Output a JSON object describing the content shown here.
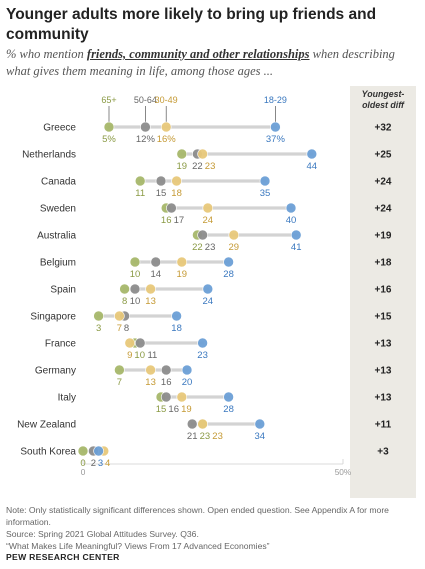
{
  "title": "Younger adults more likely to bring up friends and community",
  "subtitle": {
    "prefix": "% who mention ",
    "emphasis": "friends, community and other relationships",
    "suffix": " when describing what gives them meaning in life, among those ages ..."
  },
  "chart_data": {
    "type": "dot-plot",
    "xlim": [
      0,
      50
    ],
    "axis_tick_labels": [
      "0",
      "50%"
    ],
    "diff_header": "Youngest-oldest diff",
    "series": [
      {
        "name": "65+",
        "color": "#a7b76a"
      },
      {
        "name": "50-64",
        "color": "#8c8c8c"
      },
      {
        "name": "30-49",
        "color": "#e8c87a"
      },
      {
        "name": "18-29",
        "color": "#6b9fd6"
      }
    ],
    "rows": [
      {
        "country": "Greece",
        "values": [
          5,
          12,
          16,
          37
        ],
        "labels": [
          "5%",
          "12%",
          "16%",
          "37%"
        ],
        "diff": "+32"
      },
      {
        "country": "Netherlands",
        "values": [
          19,
          22,
          23,
          44
        ],
        "labels": [
          "19",
          "22",
          "23",
          "44"
        ],
        "diff": "+25"
      },
      {
        "country": "Canada",
        "values": [
          11,
          15,
          18,
          35
        ],
        "labels": [
          "11",
          "15",
          "18",
          "35"
        ],
        "diff": "+24"
      },
      {
        "country": "Sweden",
        "values": [
          16,
          17,
          24,
          40
        ],
        "labels": [
          "16",
          "17",
          "24",
          "40"
        ],
        "diff": "+24"
      },
      {
        "country": "Australia",
        "values": [
          22,
          23,
          29,
          41
        ],
        "labels": [
          "22",
          "23",
          "29",
          "41"
        ],
        "diff": "+19"
      },
      {
        "country": "Belgium",
        "values": [
          10,
          14,
          19,
          28
        ],
        "labels": [
          "10",
          "14",
          "19",
          "28"
        ],
        "diff": "+18"
      },
      {
        "country": "Spain",
        "values": [
          8,
          10,
          13,
          24
        ],
        "labels": [
          "8",
          "10",
          "13",
          "24"
        ],
        "diff": "+16"
      },
      {
        "country": "Singapore",
        "values": [
          3,
          8,
          7,
          18
        ],
        "labels": [
          "3",
          "8",
          "7",
          "18"
        ],
        "diff": "+15"
      },
      {
        "country": "France",
        "values": [
          10,
          11,
          9,
          23
        ],
        "labels": [
          "10",
          "11",
          "9",
          "23"
        ],
        "diff": "+13"
      },
      {
        "country": "Germany",
        "values": [
          7,
          16,
          13,
          20
        ],
        "labels": [
          "7",
          "16",
          "13",
          "20"
        ],
        "diff": "+13"
      },
      {
        "country": "Italy",
        "values": [
          15,
          16,
          19,
          28
        ],
        "labels": [
          "15",
          "16",
          "19",
          "28"
        ],
        "diff": "+13"
      },
      {
        "country": "New Zealand",
        "values": [
          23,
          21,
          23,
          34
        ],
        "labels": [
          "23",
          "21",
          "23",
          "34"
        ],
        "diff": "+11"
      },
      {
        "country": "South Korea",
        "values": [
          0,
          2,
          4,
          3
        ],
        "labels": [
          "0",
          "2",
          "4",
          "3"
        ],
        "diff": "+3"
      }
    ]
  },
  "footer": {
    "note": "Note: Only statistically significant differences shown. Open ended question. See Appendix A for more information.",
    "source": "Source: Spring 2021 Global Attitudes Survey. Q36.",
    "report": "“What Makes Life Meaningful? Views From 17 Advanced Economies”",
    "brand": "PEW RESEARCH CENTER"
  }
}
